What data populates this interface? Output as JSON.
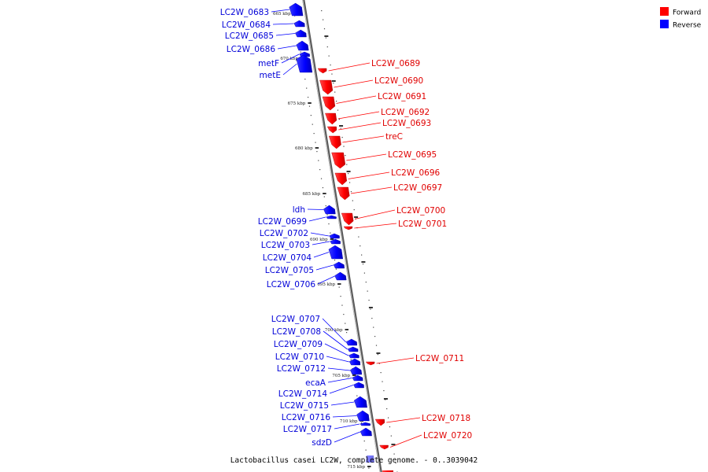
{
  "caption": "Lactobacillus casei LC2W, complete genome. - 0..3039042",
  "legend": [
    {
      "label": "Forward",
      "color": "#ff0000"
    },
    {
      "label": "Reverse",
      "color": "#0000ff"
    }
  ],
  "colors": {
    "forward": "#ff0000",
    "reverse": "#0000ff",
    "backbone": "#8a8a8a"
  },
  "ticks": [
    {
      "label": "665 kbp",
      "kbp": 665
    },
    {
      "label": "670 kbp",
      "kbp": 670
    },
    {
      "label": "675 kbp",
      "kbp": 675
    },
    {
      "label": "680 kbp",
      "kbp": 680
    },
    {
      "label": "685 kbp",
      "kbp": 685
    },
    {
      "label": "690 kbp",
      "kbp": 690
    },
    {
      "label": "695 kbp",
      "kbp": 695
    },
    {
      "label": "700 kbp",
      "kbp": 700
    },
    {
      "label": "705 kbp",
      "kbp": 705
    },
    {
      "label": "710 kbp",
      "kbp": 710
    },
    {
      "label": "715 kbp",
      "kbp": 715
    }
  ],
  "genes": [
    {
      "name": "LC2W_0683",
      "strand": "reverse"
    },
    {
      "name": "LC2W_0684",
      "strand": "reverse"
    },
    {
      "name": "LC2W_0685",
      "strand": "reverse"
    },
    {
      "name": "LC2W_0686",
      "strand": "reverse"
    },
    {
      "name": "metF",
      "strand": "reverse"
    },
    {
      "name": "metE",
      "strand": "reverse"
    },
    {
      "name": "LC2W_0689",
      "strand": "forward"
    },
    {
      "name": "LC2W_0690",
      "strand": "forward"
    },
    {
      "name": "LC2W_0691",
      "strand": "forward"
    },
    {
      "name": "LC2W_0692",
      "strand": "forward"
    },
    {
      "name": "LC2W_0693",
      "strand": "forward"
    },
    {
      "name": "treC",
      "strand": "forward"
    },
    {
      "name": "LC2W_0695",
      "strand": "forward"
    },
    {
      "name": "LC2W_0696",
      "strand": "forward"
    },
    {
      "name": "LC2W_0697",
      "strand": "forward"
    },
    {
      "name": "ldh",
      "strand": "reverse"
    },
    {
      "name": "LC2W_0699",
      "strand": "reverse"
    },
    {
      "name": "LC2W_0700",
      "strand": "forward"
    },
    {
      "name": "LC2W_0701",
      "strand": "forward"
    },
    {
      "name": "LC2W_0702",
      "strand": "reverse"
    },
    {
      "name": "LC2W_0703",
      "strand": "reverse"
    },
    {
      "name": "LC2W_0704",
      "strand": "reverse"
    },
    {
      "name": "LC2W_0705",
      "strand": "reverse"
    },
    {
      "name": "LC2W_0706",
      "strand": "reverse"
    },
    {
      "name": "LC2W_0707",
      "strand": "reverse"
    },
    {
      "name": "LC2W_0708",
      "strand": "reverse"
    },
    {
      "name": "LC2W_0709",
      "strand": "reverse"
    },
    {
      "name": "LC2W_0710",
      "strand": "reverse"
    },
    {
      "name": "LC2W_0711",
      "strand": "forward"
    },
    {
      "name": "LC2W_0712",
      "strand": "reverse"
    },
    {
      "name": "ecaA",
      "strand": "reverse"
    },
    {
      "name": "LC2W_0714",
      "strand": "reverse"
    },
    {
      "name": "LC2W_0715",
      "strand": "reverse"
    },
    {
      "name": "LC2W_0716",
      "strand": "reverse"
    },
    {
      "name": "LC2W_0717",
      "strand": "reverse"
    },
    {
      "name": "LC2W_0718",
      "strand": "forward"
    },
    {
      "name": "sdzD",
      "strand": "reverse"
    },
    {
      "name": "LC2W_0720",
      "strand": "forward"
    }
  ]
}
